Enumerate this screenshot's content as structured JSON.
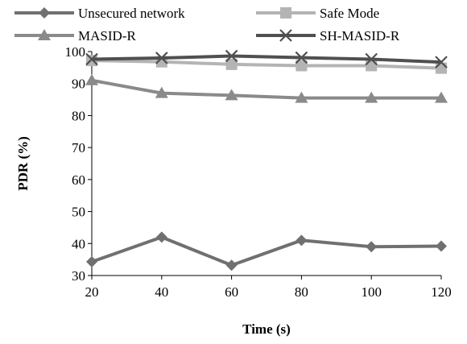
{
  "chart_data": {
    "type": "line",
    "x": [
      20,
      40,
      60,
      80,
      100,
      120
    ],
    "xlabel": "Time (s)",
    "ylabel": "PDR (%)",
    "ylim": [
      30,
      100
    ],
    "yticks": [
      30,
      40,
      50,
      60,
      70,
      80,
      90,
      100
    ],
    "grid": false,
    "legend_position": "top",
    "series": [
      {
        "name": "Unsecured network",
        "values": [
          34.3,
          42,
          33.2,
          41,
          39,
          39.2
        ],
        "color": "#707070",
        "marker": "diamond"
      },
      {
        "name": "Safe Mode",
        "values": [
          97.2,
          96.8,
          96,
          95.6,
          95.6,
          94.8
        ],
        "color": "#b4b4b4",
        "marker": "square"
      },
      {
        "name": "MASID-R",
        "values": [
          91,
          87,
          86.3,
          85.5,
          85.5,
          85.5
        ],
        "color": "#8a8a8a",
        "marker": "triangle"
      },
      {
        "name": "SH-MASID-R",
        "values": [
          97.6,
          98,
          98.6,
          98.1,
          97.6,
          96.7
        ],
        "color": "#505050",
        "marker": "x"
      }
    ]
  }
}
